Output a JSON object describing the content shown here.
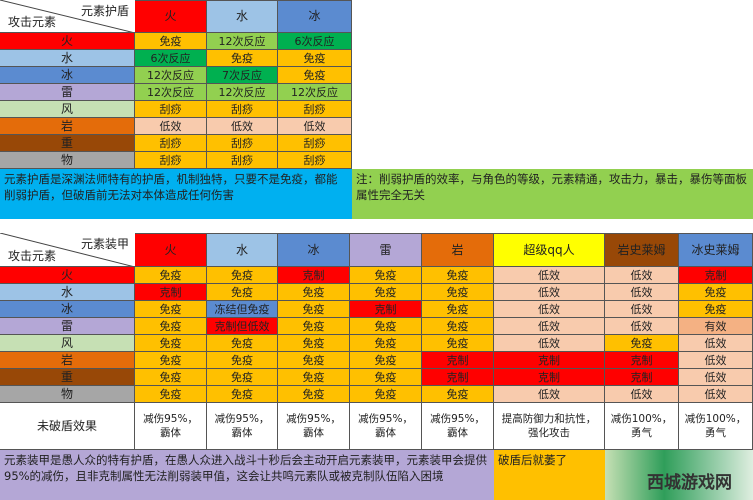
{
  "colors": {
    "火": "#ff0000",
    "水": "#9dc3e6",
    "冰": "#5b8bd0",
    "雷": "#b4a7d6",
    "风": "#c6e0b4",
    "岩": "#e46c0a",
    "重": "#984807",
    "物": "#a6a6a6",
    "超级qq人": "#ffff00",
    "岩史莱姆": "#984807",
    "冰史莱姆": "#5b8bd0"
  },
  "cell_colors": {
    "免疫": "#ffc000",
    "克制": "#ff0000",
    "低效": "#f8cbad",
    "有效": "#f4b183",
    "12次反应": "#92d050",
    "6次反应": "#00b050",
    "7次反应": "#00b050",
    "刮痧": "#ffc000",
    "冻结但免疫": "#5b8bd0",
    "克制但低效": "#ff0000"
  },
  "shield": {
    "corner_top": "元素护盾",
    "corner_bottom": "攻击元素",
    "columns": [
      "火",
      "水",
      "冰"
    ],
    "rows": [
      {
        "attacker": "火",
        "cells": [
          "免疫",
          "12次反应",
          "6次反应"
        ]
      },
      {
        "attacker": "水",
        "cells": [
          "6次反应",
          "免疫",
          "免疫"
        ]
      },
      {
        "attacker": "冰",
        "cells": [
          "12次反应",
          "7次反应",
          "免疫"
        ]
      },
      {
        "attacker": "雷",
        "cells": [
          "12次反应",
          "12次反应",
          "12次反应"
        ]
      },
      {
        "attacker": "风",
        "cells": [
          "刮痧",
          "刮痧",
          "刮痧"
        ]
      },
      {
        "attacker": "岩",
        "cells": [
          "低效",
          "低效",
          "低效"
        ]
      },
      {
        "attacker": "重",
        "cells": [
          "刮痧",
          "刮痧",
          "刮痧"
        ]
      },
      {
        "attacker": "物",
        "cells": [
          "刮痧",
          "刮痧",
          "刮痧"
        ]
      }
    ],
    "note": "元素护盾是深渊法师特有的护盾，机制独特，只要不是免疫，都能削弱护盾，但破盾前无法对本体造成任何伤害",
    "side_note": "注：削弱护盾的效率，与角色的等级，元素精通，攻击力，暴击，暴伤等面板属性完全无关"
  },
  "armor": {
    "corner_top": "元素装甲",
    "corner_bottom": "攻击元素",
    "columns": [
      "火",
      "水",
      "冰",
      "雷",
      "岩",
      "超级qq人",
      "岩史莱姆",
      "冰史莱姆"
    ],
    "rows": [
      {
        "attacker": "火",
        "cells": [
          "免疫",
          "免疫",
          "克制",
          "免疫",
          "免疫",
          "低效",
          "低效",
          "克制"
        ]
      },
      {
        "attacker": "水",
        "cells": [
          "克制",
          "免疫",
          "免疫",
          "免疫",
          "免疫",
          "低效",
          "低效",
          "免疫"
        ]
      },
      {
        "attacker": "冰",
        "cells": [
          "免疫",
          "冻结但免疫",
          "免疫",
          "克制",
          "免疫",
          "低效",
          "低效",
          "免疫"
        ]
      },
      {
        "attacker": "雷",
        "cells": [
          "免疫",
          "克制但低效",
          "免疫",
          "免疫",
          "免疫",
          "低效",
          "低效",
          "有效"
        ]
      },
      {
        "attacker": "风",
        "cells": [
          "免疫",
          "免疫",
          "免疫",
          "免疫",
          "免疫",
          "低效",
          "免疫",
          "低效"
        ]
      },
      {
        "attacker": "岩",
        "cells": [
          "免疫",
          "免疫",
          "免疫",
          "免疫",
          "克制",
          "克制",
          "克制",
          "低效"
        ]
      },
      {
        "attacker": "重",
        "cells": [
          "免疫",
          "免疫",
          "免疫",
          "免疫",
          "克制",
          "克制",
          "克制",
          "低效"
        ]
      },
      {
        "attacker": "物",
        "cells": [
          "免疫",
          "免疫",
          "免疫",
          "免疫",
          "免疫",
          "低效",
          "低效",
          "低效"
        ]
      }
    ],
    "effect_label": "未破盾效果",
    "effects": [
      "减伤95%，霸体",
      "减伤95%，霸体",
      "减伤95%，霸体",
      "减伤95%，霸体",
      "减伤95%，霸体",
      "提高防御力和抗性，强化攻击",
      "减伤100%，勇气",
      "减伤100%，勇气"
    ],
    "note": "元素装甲是愚人众的特有护盾，在愚人众进入战斗十秒后会主动开启元素装甲，元素装甲会提供95%的减伤，且非克制属性无法削弱装甲值，这会让共鸣元素队或被克制队伍陷入困境",
    "side_note": "破盾后就萎了"
  },
  "watermark": "西城游戏网"
}
